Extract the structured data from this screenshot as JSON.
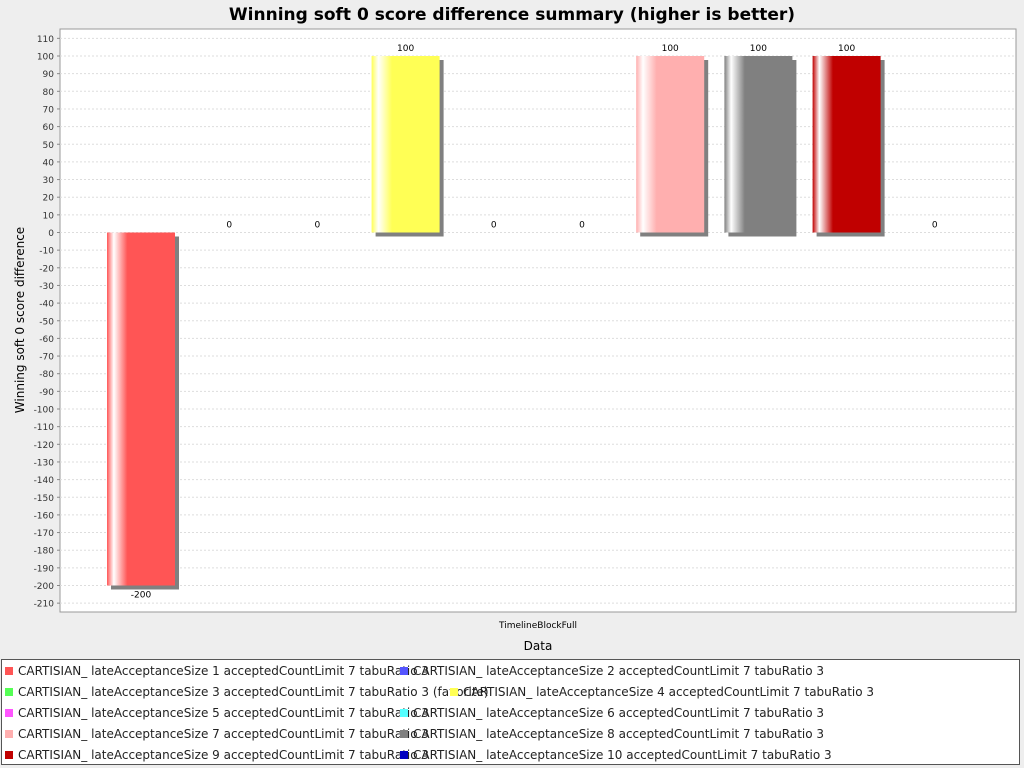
{
  "chart_data": {
    "type": "bar",
    "title": "Winning soft 0 score difference summary (higher is better)",
    "xlabel": "Data",
    "ylabel": "Winning soft 0 score difference",
    "categories": [
      "TimelineBlockFull"
    ],
    "ylim": [
      -215,
      117
    ],
    "yticks": [
      110,
      100,
      90,
      80,
      70,
      60,
      50,
      40,
      30,
      20,
      10,
      0,
      -10,
      -20,
      -30,
      -40,
      -50,
      -60,
      -70,
      -80,
      -90,
      -100,
      -110,
      -120,
      -130,
      -140,
      -150,
      -160,
      -170,
      -180,
      -190,
      -200,
      -210
    ],
    "grid": true,
    "legend_position": "bottom",
    "series": [
      {
        "name": "CARTISIAN_ lateAcceptanceSize 1 acceptedCountLimit 7 tabuRatio 3",
        "values": [
          -200
        ],
        "color": "#ff5555"
      },
      {
        "name": "CARTISIAN_ lateAcceptanceSize 2 acceptedCountLimit 7 tabuRatio 3",
        "values": [
          0
        ],
        "color": "#5555ff"
      },
      {
        "name": "CARTISIAN_ lateAcceptanceSize 3 acceptedCountLimit 7 tabuRatio 3 (favorite)",
        "values": [
          0
        ],
        "color": "#55ff55"
      },
      {
        "name": "CARTISIAN_ lateAcceptanceSize 4 acceptedCountLimit 7 tabuRatio 3",
        "values": [
          100
        ],
        "color": "#ffff55"
      },
      {
        "name": "CARTISIAN_ lateAcceptanceSize 5 acceptedCountLimit 7 tabuRatio 3",
        "values": [
          0
        ],
        "color": "#ff55ff"
      },
      {
        "name": "CARTISIAN_ lateAcceptanceSize 6 acceptedCountLimit 7 tabuRatio 3",
        "values": [
          0
        ],
        "color": "#55ffff"
      },
      {
        "name": "CARTISIAN_ lateAcceptanceSize 7 acceptedCountLimit 7 tabuRatio 3",
        "values": [
          100
        ],
        "color": "#ffafaf"
      },
      {
        "name": "CARTISIAN_ lateAcceptanceSize 8 acceptedCountLimit 7 tabuRatio 3",
        "values": [
          100
        ],
        "color": "#808080"
      },
      {
        "name": "CARTISIAN_ lateAcceptanceSize 9 acceptedCountLimit 7 tabuRatio 3",
        "values": [
          100
        ],
        "color": "#c00000"
      },
      {
        "name": "CARTISIAN_ lateAcceptanceSize 10 acceptedCountLimit 7 tabuRatio 3",
        "values": [
          0
        ],
        "color": "#0000c0"
      }
    ]
  }
}
